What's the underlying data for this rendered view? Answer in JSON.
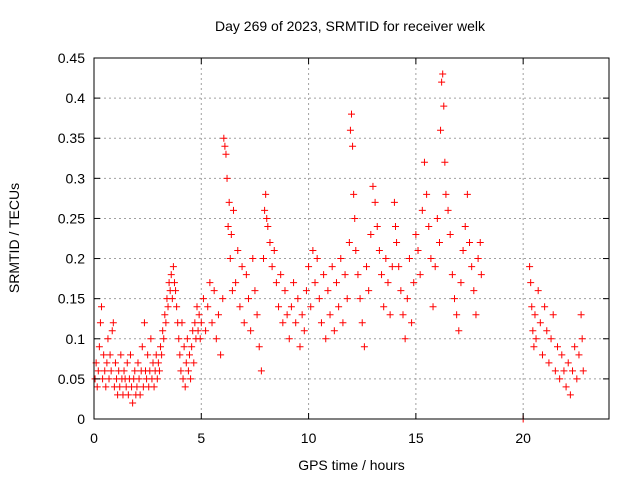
{
  "chart_data": {
    "type": "scatter",
    "title": "Day 269 of 2023, SRMTID for receiver welk",
    "xlabel": "GPS time / hours",
    "ylabel": "SRMTID / TECUs",
    "xlim": [
      0,
      24
    ],
    "ylim": [
      0,
      0.45
    ],
    "xticks": [
      0,
      5,
      10,
      15,
      20
    ],
    "yticks": [
      0,
      0.05,
      0.1,
      0.15,
      0.2,
      0.25,
      0.3,
      0.35,
      0.4,
      0.45
    ],
    "grid": true,
    "marker": "+",
    "color": "#ff0000",
    "series": [
      {
        "name": "SRMTID",
        "points": [
          [
            0.05,
            0.05
          ],
          [
            0.1,
            0.07
          ],
          [
            0.15,
            0.04
          ],
          [
            0.2,
            0.06
          ],
          [
            0.25,
            0.09
          ],
          [
            0.3,
            0.12
          ],
          [
            0.35,
            0.14
          ],
          [
            0.4,
            0.05
          ],
          [
            0.45,
            0.08
          ],
          [
            0.5,
            0.06
          ],
          [
            0.55,
            0.04
          ],
          [
            0.6,
            0.07
          ],
          [
            0.65,
            0.1
          ],
          [
            0.7,
            0.05
          ],
          [
            0.75,
            0.08
          ],
          [
            0.8,
            0.06
          ],
          [
            0.85,
            0.11
          ],
          [
            0.9,
            0.12
          ],
          [
            0.95,
            0.04
          ],
          [
            1.0,
            0.07
          ],
          [
            1.05,
            0.05
          ],
          [
            1.1,
            0.03
          ],
          [
            1.15,
            0.06
          ],
          [
            1.2,
            0.04
          ],
          [
            1.25,
            0.08
          ],
          [
            1.3,
            0.05
          ],
          [
            1.35,
            0.03
          ],
          [
            1.4,
            0.06
          ],
          [
            1.45,
            0.05
          ],
          [
            1.5,
            0.04
          ],
          [
            1.55,
            0.07
          ],
          [
            1.6,
            0.03
          ],
          [
            1.65,
            0.05
          ],
          [
            1.7,
            0.08
          ],
          [
            1.75,
            0.04
          ],
          [
            1.8,
            0.02
          ],
          [
            1.85,
            0.05
          ],
          [
            1.9,
            0.06
          ],
          [
            1.95,
            0.03
          ],
          [
            2.0,
            0.04
          ],
          [
            2.05,
            0.07
          ],
          [
            2.1,
            0.05
          ],
          [
            2.15,
            0.03
          ],
          [
            2.2,
            0.06
          ],
          [
            2.25,
            0.09
          ],
          [
            2.3,
            0.04
          ],
          [
            2.35,
            0.12
          ],
          [
            2.4,
            0.06
          ],
          [
            2.45,
            0.05
          ],
          [
            2.5,
            0.08
          ],
          [
            2.55,
            0.04
          ],
          [
            2.6,
            0.06
          ],
          [
            2.65,
            0.1
          ],
          [
            2.7,
            0.05
          ],
          [
            2.75,
            0.07
          ],
          [
            2.8,
            0.04
          ],
          [
            2.85,
            0.06
          ],
          [
            2.9,
            0.08
          ],
          [
            2.95,
            0.05
          ],
          [
            3.0,
            0.07
          ],
          [
            3.05,
            0.06
          ],
          [
            3.1,
            0.09
          ],
          [
            3.15,
            0.08
          ],
          [
            3.2,
            0.11
          ],
          [
            3.25,
            0.1
          ],
          [
            3.3,
            0.13
          ],
          [
            3.35,
            0.12
          ],
          [
            3.4,
            0.15
          ],
          [
            3.45,
            0.14
          ],
          [
            3.5,
            0.17
          ],
          [
            3.55,
            0.16
          ],
          [
            3.6,
            0.18
          ],
          [
            3.65,
            0.15
          ],
          [
            3.7,
            0.19
          ],
          [
            3.75,
            0.17
          ],
          [
            3.8,
            0.16
          ],
          [
            3.85,
            0.14
          ],
          [
            3.9,
            0.12
          ],
          [
            3.95,
            0.1
          ],
          [
            4.0,
            0.08
          ],
          [
            4.05,
            0.06
          ],
          [
            4.1,
            0.12
          ],
          [
            4.15,
            0.05
          ],
          [
            4.2,
            0.09
          ],
          [
            4.25,
            0.04
          ],
          [
            4.3,
            0.07
          ],
          [
            4.35,
            0.1
          ],
          [
            4.4,
            0.06
          ],
          [
            4.45,
            0.08
          ],
          [
            4.5,
            0.05
          ],
          [
            4.55,
            0.09
          ],
          [
            4.6,
            0.11
          ],
          [
            4.65,
            0.07
          ],
          [
            4.7,
            0.12
          ],
          [
            4.75,
            0.1
          ],
          [
            4.8,
            0.14
          ],
          [
            4.85,
            0.11
          ],
          [
            4.9,
            0.13
          ],
          [
            4.95,
            0.1
          ],
          [
            5.0,
            0.12
          ],
          [
            5.1,
            0.15
          ],
          [
            5.2,
            0.11
          ],
          [
            5.3,
            0.14
          ],
          [
            5.4,
            0.17
          ],
          [
            5.5,
            0.12
          ],
          [
            5.6,
            0.16
          ],
          [
            5.7,
            0.1
          ],
          [
            5.8,
            0.13
          ],
          [
            5.9,
            0.08
          ],
          [
            6.0,
            0.15
          ],
          [
            6.05,
            0.35
          ],
          [
            6.1,
            0.34
          ],
          [
            6.15,
            0.33
          ],
          [
            6.2,
            0.3
          ],
          [
            6.25,
            0.24
          ],
          [
            6.3,
            0.27
          ],
          [
            6.35,
            0.2
          ],
          [
            6.4,
            0.23
          ],
          [
            6.45,
            0.16
          ],
          [
            6.5,
            0.26
          ],
          [
            6.6,
            0.17
          ],
          [
            6.7,
            0.21
          ],
          [
            6.8,
            0.14
          ],
          [
            6.9,
            0.19
          ],
          [
            7.0,
            0.12
          ],
          [
            7.1,
            0.18
          ],
          [
            7.2,
            0.15
          ],
          [
            7.3,
            0.11
          ],
          [
            7.4,
            0.2
          ],
          [
            7.5,
            0.16
          ],
          [
            7.6,
            0.13
          ],
          [
            7.7,
            0.09
          ],
          [
            7.8,
            0.06
          ],
          [
            7.9,
            0.2
          ],
          [
            7.95,
            0.26
          ],
          [
            8.0,
            0.28
          ],
          [
            8.05,
            0.25
          ],
          [
            8.1,
            0.24
          ],
          [
            8.2,
            0.22
          ],
          [
            8.3,
            0.19
          ],
          [
            8.4,
            0.21
          ],
          [
            8.5,
            0.17
          ],
          [
            8.6,
            0.14
          ],
          [
            8.7,
            0.18
          ],
          [
            8.8,
            0.12
          ],
          [
            8.9,
            0.16
          ],
          [
            9.0,
            0.13
          ],
          [
            9.1,
            0.1
          ],
          [
            9.2,
            0.14
          ],
          [
            9.3,
            0.17
          ],
          [
            9.4,
            0.12
          ],
          [
            9.5,
            0.15
          ],
          [
            9.6,
            0.09
          ],
          [
            9.7,
            0.13
          ],
          [
            9.8,
            0.11
          ],
          [
            9.9,
            0.16
          ],
          [
            10.0,
            0.19
          ],
          [
            10.1,
            0.14
          ],
          [
            10.2,
            0.21
          ],
          [
            10.3,
            0.17
          ],
          [
            10.4,
            0.2
          ],
          [
            10.5,
            0.15
          ],
          [
            10.6,
            0.12
          ],
          [
            10.7,
            0.18
          ],
          [
            10.8,
            0.1
          ],
          [
            10.9,
            0.16
          ],
          [
            11.0,
            0.13
          ],
          [
            11.1,
            0.19
          ],
          [
            11.2,
            0.11
          ],
          [
            11.3,
            0.17
          ],
          [
            11.4,
            0.14
          ],
          [
            11.5,
            0.2
          ],
          [
            11.6,
            0.12
          ],
          [
            11.7,
            0.18
          ],
          [
            11.8,
            0.15
          ],
          [
            11.9,
            0.22
          ],
          [
            11.95,
            0.36
          ],
          [
            12.0,
            0.38
          ],
          [
            12.05,
            0.34
          ],
          [
            12.1,
            0.28
          ],
          [
            12.15,
            0.25
          ],
          [
            12.2,
            0.21
          ],
          [
            12.3,
            0.18
          ],
          [
            12.4,
            0.15
          ],
          [
            12.5,
            0.12
          ],
          [
            12.6,
            0.09
          ],
          [
            12.7,
            0.19
          ],
          [
            12.8,
            0.16
          ],
          [
            12.9,
            0.23
          ],
          [
            13.0,
            0.29
          ],
          [
            13.1,
            0.27
          ],
          [
            13.2,
            0.24
          ],
          [
            13.3,
            0.21
          ],
          [
            13.4,
            0.18
          ],
          [
            13.5,
            0.14
          ],
          [
            13.6,
            0.2
          ],
          [
            13.7,
            0.17
          ],
          [
            13.8,
            0.13
          ],
          [
            13.9,
            0.19
          ],
          [
            14.0,
            0.27
          ],
          [
            14.05,
            0.24
          ],
          [
            14.1,
            0.22
          ],
          [
            14.2,
            0.19
          ],
          [
            14.3,
            0.16
          ],
          [
            14.4,
            0.13
          ],
          [
            14.5,
            0.1
          ],
          [
            14.6,
            0.15
          ],
          [
            14.7,
            0.2
          ],
          [
            14.8,
            0.12
          ],
          [
            14.9,
            0.17
          ],
          [
            15.0,
            0.23
          ],
          [
            15.1,
            0.21
          ],
          [
            15.2,
            0.18
          ],
          [
            15.3,
            0.26
          ],
          [
            15.4,
            0.32
          ],
          [
            15.5,
            0.28
          ],
          [
            15.6,
            0.24
          ],
          [
            15.7,
            0.2
          ],
          [
            15.8,
            0.14
          ],
          [
            15.9,
            0.19
          ],
          [
            16.0,
            0.25
          ],
          [
            16.1,
            0.22
          ],
          [
            16.15,
            0.36
          ],
          [
            16.2,
            0.42
          ],
          [
            16.25,
            0.43
          ],
          [
            16.3,
            0.39
          ],
          [
            16.35,
            0.32
          ],
          [
            16.4,
            0.28
          ],
          [
            16.5,
            0.26
          ],
          [
            16.6,
            0.23
          ],
          [
            16.7,
            0.18
          ],
          [
            16.8,
            0.15
          ],
          [
            16.9,
            0.13
          ],
          [
            17.0,
            0.11
          ],
          [
            17.1,
            0.17
          ],
          [
            17.2,
            0.21
          ],
          [
            17.3,
            0.24
          ],
          [
            17.4,
            0.28
          ],
          [
            17.5,
            0.22
          ],
          [
            17.6,
            0.19
          ],
          [
            17.7,
            0.16
          ],
          [
            17.8,
            0.13
          ],
          [
            17.9,
            0.2
          ],
          [
            18.0,
            0.22
          ],
          [
            18.05,
            0.18
          ],
          [
            20.0,
            0.0
          ],
          [
            20.3,
            0.19
          ],
          [
            20.35,
            0.17
          ],
          [
            20.4,
            0.14
          ],
          [
            20.45,
            0.11
          ],
          [
            20.5,
            0.09
          ],
          [
            20.55,
            0.13
          ],
          [
            20.6,
            0.1
          ],
          [
            20.7,
            0.16
          ],
          [
            20.8,
            0.12
          ],
          [
            20.9,
            0.08
          ],
          [
            21.0,
            0.14
          ],
          [
            21.1,
            0.11
          ],
          [
            21.2,
            0.07
          ],
          [
            21.3,
            0.1
          ],
          [
            21.4,
            0.13
          ],
          [
            21.5,
            0.06
          ],
          [
            21.6,
            0.09
          ],
          [
            21.7,
            0.05
          ],
          [
            21.8,
            0.08
          ],
          [
            21.9,
            0.06
          ],
          [
            22.0,
            0.04
          ],
          [
            22.1,
            0.07
          ],
          [
            22.2,
            0.03
          ],
          [
            22.3,
            0.06
          ],
          [
            22.4,
            0.09
          ],
          [
            22.5,
            0.05
          ],
          [
            22.6,
            0.08
          ],
          [
            22.7,
            0.13
          ],
          [
            22.75,
            0.1
          ],
          [
            22.8,
            0.06
          ]
        ]
      }
    ]
  }
}
